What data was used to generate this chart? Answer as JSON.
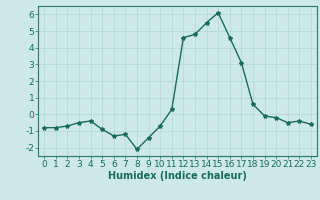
{
  "x": [
    0,
    1,
    2,
    3,
    4,
    5,
    6,
    7,
    8,
    9,
    10,
    11,
    12,
    13,
    14,
    15,
    16,
    17,
    18,
    19,
    20,
    21,
    22,
    23
  ],
  "y": [
    -0.8,
    -0.8,
    -0.7,
    -0.5,
    -0.4,
    -0.9,
    -1.3,
    -1.2,
    -2.1,
    -1.4,
    -0.7,
    0.3,
    4.6,
    4.8,
    5.5,
    6.1,
    4.6,
    3.1,
    0.6,
    -0.1,
    -0.2,
    -0.5,
    -0.4,
    -0.6
  ],
  "line_color": "#1a6b5a",
  "marker": "*",
  "marker_size": 3,
  "xlabel": "Humidex (Indice chaleur)",
  "xlabel_fontsize": 7,
  "xlabel_fontweight": "bold",
  "ylim": [
    -2.5,
    6.5
  ],
  "xlim": [
    -0.5,
    23.5
  ],
  "yticks": [
    -2,
    -1,
    0,
    1,
    2,
    3,
    4,
    5,
    6
  ],
  "xticks": [
    0,
    1,
    2,
    3,
    4,
    5,
    6,
    7,
    8,
    9,
    10,
    11,
    12,
    13,
    14,
    15,
    16,
    17,
    18,
    19,
    20,
    21,
    22,
    23
  ],
  "grid_color": "#b8d8d8",
  "background_color": "#cce8e8",
  "tick_fontsize": 6.5,
  "line_width": 1.0,
  "spine_color": "#2a7a6a"
}
